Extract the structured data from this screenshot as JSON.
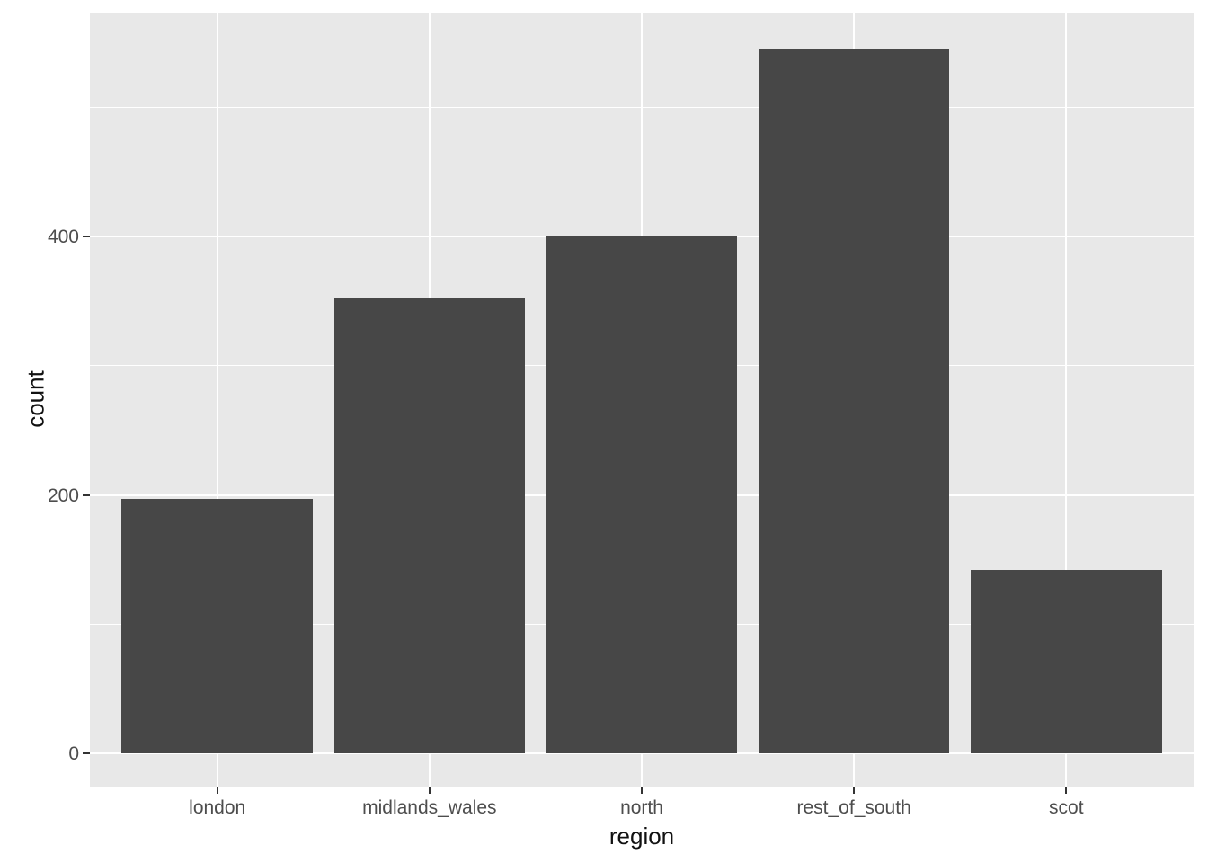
{
  "chart_data": {
    "type": "bar",
    "title": "",
    "xlabel": "region",
    "ylabel": "count",
    "categories": [
      "london",
      "midlands_wales",
      "north",
      "rest_of_south",
      "scot"
    ],
    "values": [
      197,
      353,
      400,
      545,
      142
    ],
    "ylim": [
      0,
      572
    ],
    "y_ticks_major": [
      0,
      200,
      400
    ],
    "y_ticks_minor": [
      100,
      300,
      500
    ],
    "grid": "on",
    "legend": "none",
    "theme": "ggplot2-grey",
    "colors": {
      "bar_fill": "#474747",
      "panel_background": "#e8e8e8",
      "gridline": "#ffffff",
      "tick_label": "#4d4d4d",
      "axis_title": "#111111",
      "tick_mark": "#333333",
      "page_background": "#ffffff"
    }
  }
}
